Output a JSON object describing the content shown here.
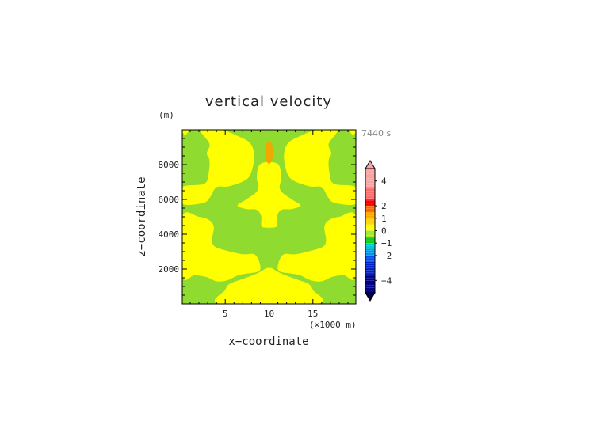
{
  "chart_data": {
    "type": "heatmap",
    "title": "vertical velocity",
    "time_label": "7440 s",
    "xlabel": "x−coordinate",
    "x_unit": "(×1000 m)",
    "ylabel": "z−coordinate",
    "y_unit": "(m)",
    "xlim": [
      0.1,
      19.9
    ],
    "ylim": [
      0,
      10000
    ],
    "x_ticks": [
      5,
      10,
      15
    ],
    "y_ticks": [
      2000,
      4000,
      6000,
      8000
    ],
    "x_tick_labels": [
      "5",
      "10",
      "15"
    ],
    "y_tick_labels": [
      "2000",
      "4000",
      "6000",
      "8000"
    ],
    "field_levels": {
      "background": "0 to 0.5 (green)",
      "main_plume": "0.5 to 1 (yellow)",
      "upper_core": "1 to 1.5 (orange)"
    },
    "regions": {
      "yellow": [
        {
          "name": "top-left-lobe",
          "points": [
            [
              2.2,
              10000
            ],
            [
              4.5,
              10000
            ],
            [
              6.4,
              9650
            ],
            [
              7.8,
              9250
            ],
            [
              8.3,
              8550
            ],
            [
              8.0,
              7600
            ],
            [
              7.3,
              7100
            ],
            [
              5.4,
              6750
            ],
            [
              4.0,
              6700
            ],
            [
              3.3,
              6150
            ],
            [
              2.5,
              5800
            ],
            [
              0.1,
              5750
            ],
            [
              0.1,
              6700
            ],
            [
              2.6,
              6900
            ],
            [
              3.1,
              7500
            ],
            [
              3.2,
              8250
            ],
            [
              2.9,
              8650
            ],
            [
              3.2,
              9200
            ]
          ]
        },
        {
          "name": "top-right-lobe",
          "points": [
            [
              17.8,
              10000
            ],
            [
              15.5,
              10000
            ],
            [
              13.6,
              9650
            ],
            [
              12.2,
              9250
            ],
            [
              11.7,
              8550
            ],
            [
              12.0,
              7600
            ],
            [
              12.7,
              7100
            ],
            [
              14.6,
              6750
            ],
            [
              16.0,
              6700
            ],
            [
              16.7,
              6150
            ],
            [
              17.5,
              5800
            ],
            [
              19.9,
              5750
            ],
            [
              19.9,
              6700
            ],
            [
              17.4,
              6900
            ],
            [
              16.9,
              7500
            ],
            [
              16.8,
              8250
            ],
            [
              17.1,
              8650
            ],
            [
              16.8,
              9200
            ]
          ]
        },
        {
          "name": "central-column",
          "points": [
            [
              9.05,
              8050
            ],
            [
              10.95,
              8050
            ],
            [
              11.4,
              7300
            ],
            [
              11.2,
              6700
            ],
            [
              11.6,
              6350
            ],
            [
              12.6,
              6000
            ],
            [
              13.6,
              5650
            ],
            [
              12.6,
              5450
            ],
            [
              11.4,
              5400
            ],
            [
              10.9,
              5050
            ],
            [
              10.9,
              4600
            ],
            [
              10.7,
              4400
            ],
            [
              9.3,
              4400
            ],
            [
              9.1,
              4600
            ],
            [
              9.1,
              5050
            ],
            [
              8.6,
              5400
            ],
            [
              7.4,
              5450
            ],
            [
              6.4,
              5650
            ],
            [
              7.4,
              6000
            ],
            [
              8.4,
              6350
            ],
            [
              8.8,
              6700
            ],
            [
              8.6,
              7300
            ]
          ]
        },
        {
          "name": "left-band",
          "points": [
            [
              0.1,
              5000
            ],
            [
              2.0,
              5000
            ],
            [
              3.2,
              4800
            ],
            [
              3.7,
              4400
            ],
            [
              3.5,
              3700
            ],
            [
              3.8,
              3300
            ],
            [
              5.2,
              3050
            ],
            [
              7.0,
              2850
            ],
            [
              8.3,
              2850
            ],
            [
              8.9,
              2400
            ],
            [
              8.9,
              1900
            ],
            [
              7.6,
              1750
            ],
            [
              6.5,
              1650
            ],
            [
              5.2,
              1350
            ],
            [
              4.0,
              1300
            ],
            [
              2.8,
              1550
            ],
            [
              1.5,
              1650
            ],
            [
              0.1,
              1600
            ]
          ]
        },
        {
          "name": "right-band",
          "points": [
            [
              19.9,
              5000
            ],
            [
              18.0,
              5000
            ],
            [
              16.8,
              4800
            ],
            [
              16.3,
              4400
            ],
            [
              16.5,
              3700
            ],
            [
              16.2,
              3300
            ],
            [
              14.8,
              3050
            ],
            [
              13.0,
              2850
            ],
            [
              11.7,
              2850
            ],
            [
              11.1,
              2400
            ],
            [
              11.1,
              1900
            ],
            [
              12.4,
              1750
            ],
            [
              13.5,
              1650
            ],
            [
              14.8,
              1350
            ],
            [
              16.0,
              1300
            ],
            [
              17.2,
              1550
            ],
            [
              18.5,
              1650
            ],
            [
              19.9,
              1600
            ]
          ]
        },
        {
          "name": "bottom-band",
          "points": [
            [
              4.5,
              0
            ],
            [
              15.5,
              0
            ],
            [
              15.0,
              800
            ],
            [
              14.5,
              1150
            ],
            [
              13.2,
              1400
            ],
            [
              11.6,
              1700
            ],
            [
              10.8,
              1900
            ],
            [
              10.3,
              2050
            ],
            [
              9.7,
              2050
            ],
            [
              9.2,
              1900
            ],
            [
              8.4,
              1700
            ],
            [
              6.8,
              1400
            ],
            [
              5.5,
              1150
            ],
            [
              5.0,
              800
            ]
          ]
        },
        {
          "name": "top-left-corner",
          "points": [
            [
              0.1,
              10000
            ],
            [
              0.9,
              10000
            ],
            [
              0.4,
              9700
            ]
          ]
        },
        {
          "name": "top-right-corner",
          "points": [
            [
              19.9,
              10000
            ],
            [
              19.1,
              10000
            ],
            [
              19.6,
              9700
            ]
          ]
        }
      ],
      "green": [
        {
          "name": "core-bottom-hole",
          "points": [
            [
              9.4,
              3200
            ],
            [
              10.6,
              3200
            ],
            [
              10.55,
              3450
            ],
            [
              9.45,
              3450
            ]
          ]
        }
      ],
      "orange": [
        {
          "name": "upper-core",
          "ellipse": {
            "cx": 10.0,
            "cy": 8700,
            "rx": 0.45,
            "ry": 650
          }
        }
      ]
    },
    "colorbar": {
      "tick_labels": [
        "4",
        "2",
        "1",
        "0",
        "−1",
        "−2",
        "−4"
      ],
      "bins": [
        {
          "from": 5,
          "to": 3.5,
          "color": "#f9a3a3"
        },
        {
          "from": 3.5,
          "to": 2.5,
          "color": "#fb6c6c"
        },
        {
          "from": 2.5,
          "to": 2,
          "color": "#fe0000"
        },
        {
          "from": 2,
          "to": 1.5,
          "color": "#fe6a00"
        },
        {
          "from": 1.5,
          "to": 1,
          "color": "#fea800"
        },
        {
          "from": 1,
          "to": 0.5,
          "color": "#fed200"
        },
        {
          "from": 0.5,
          "to": 0,
          "color": "#fefe00"
        },
        {
          "from": 0,
          "to": -0.5,
          "color": "#a8e830"
        },
        {
          "from": -0.5,
          "to": -1,
          "color": "#10d010"
        },
        {
          "from": -1,
          "to": -1.5,
          "color": "#00c8d8"
        },
        {
          "from": -1.5,
          "to": -2,
          "color": "#0096f0"
        },
        {
          "from": -2,
          "to": -2.5,
          "color": "#0050f0"
        },
        {
          "from": -2.5,
          "to": -3.5,
          "color": "#0022c8"
        },
        {
          "from": -3.5,
          "to": -5,
          "color": "#00008c"
        }
      ],
      "over_color": "#f9a3a3",
      "under_color": "#000050"
    },
    "colors": {
      "green": "#8fdb30",
      "yellow": "#ffff00",
      "orange": "#f0a800",
      "axis": "#000000"
    }
  }
}
